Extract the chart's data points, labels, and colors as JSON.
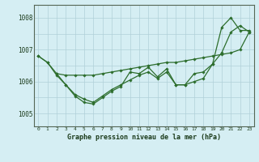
{
  "background_color": "#d5eef3",
  "grid_color": "#b0d0d8",
  "line_color": "#2d6e2d",
  "title": "Graphe pression niveau de la mer (hPa)",
  "xlim": [
    -0.5,
    23.5
  ],
  "ylim": [
    1004.6,
    1008.4
  ],
  "yticks": [
    1005,
    1006,
    1007,
    1008
  ],
  "xtick_labels": [
    "0",
    "1",
    "2",
    "3",
    "4",
    "5",
    "6",
    "7",
    "8",
    "9",
    "10",
    "11",
    "12",
    "13",
    "14",
    "15",
    "16",
    "17",
    "18",
    "19",
    "20",
    "21",
    "22",
    "23"
  ],
  "series": [
    {
      "x": [
        0,
        1,
        2,
        3,
        4,
        5,
        6,
        7,
        8,
        9,
        10,
        11,
        12,
        13,
        14,
        15,
        16,
        17,
        18,
        19,
        20,
        21,
        22,
        23
      ],
      "y": [
        1006.8,
        1006.6,
        1006.25,
        1006.2,
        1006.2,
        1006.2,
        1006.2,
        1006.25,
        1006.3,
        1006.35,
        1006.4,
        1006.45,
        1006.5,
        1006.55,
        1006.6,
        1006.6,
        1006.65,
        1006.7,
        1006.75,
        1006.8,
        1006.85,
        1006.9,
        1007.0,
        1007.55
      ]
    },
    {
      "x": [
        0,
        1,
        2,
        3,
        4,
        5,
        6,
        7,
        8,
        9,
        10,
        11,
        12,
        13,
        14,
        15,
        16,
        17,
        18,
        19,
        20,
        21,
        22,
        23
      ],
      "y": [
        1006.8,
        1006.6,
        1006.2,
        1005.9,
        1005.6,
        1005.45,
        1005.35,
        1005.55,
        1005.75,
        1005.9,
        1006.05,
        1006.2,
        1006.3,
        1006.1,
        1006.3,
        1005.9,
        1005.9,
        1006.0,
        1006.1,
        1006.55,
        1006.9,
        1007.55,
        1007.75,
        1007.55
      ]
    },
    {
      "x": [
        2,
        3,
        4,
        5,
        6,
        7,
        8,
        9,
        10,
        11,
        12,
        13,
        14,
        15,
        16,
        17,
        18,
        19,
        20,
        21,
        22,
        23
      ],
      "y": [
        1006.25,
        1005.9,
        1005.55,
        1005.35,
        1005.3,
        1005.5,
        1005.7,
        1005.85,
        1006.3,
        1006.25,
        1006.45,
        1006.15,
        1006.4,
        1005.9,
        1005.9,
        1006.25,
        1006.3,
        1006.55,
        1007.7,
        1008.0,
        1007.6,
        1007.6
      ]
    }
  ]
}
